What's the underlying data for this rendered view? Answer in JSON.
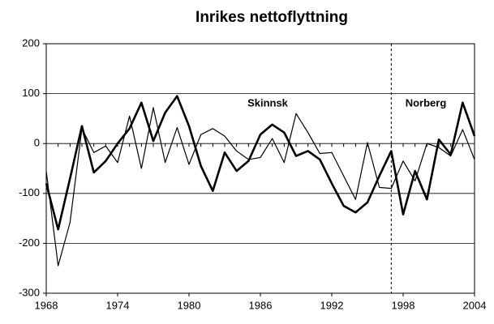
{
  "chart_data": {
    "type": "line",
    "title": "Inrikes nettoflyttning",
    "x": [
      1968,
      1969,
      1970,
      1971,
      1972,
      1973,
      1974,
      1975,
      1976,
      1977,
      1978,
      1979,
      1980,
      1981,
      1982,
      1983,
      1984,
      1985,
      1986,
      1987,
      1988,
      1989,
      1990,
      1991,
      1992,
      1993,
      1994,
      1995,
      1996,
      1997,
      1998,
      1999,
      2000,
      2001,
      2002,
      2003,
      2004
    ],
    "series": [
      {
        "name": "Skinnsk",
        "color": "#000000",
        "width": 1.2,
        "values": [
          -55,
          -245,
          -158,
          30,
          -18,
          -5,
          -38,
          55,
          -50,
          72,
          -38,
          32,
          -42,
          18,
          30,
          15,
          -15,
          -32,
          -28,
          10,
          -38,
          60,
          22,
          -20,
          -18,
          -65,
          -112,
          2,
          -88,
          -90,
          -35,
          -75,
          0,
          -8,
          -25,
          28,
          -32
        ]
      },
      {
        "name": "Norberg",
        "color": "#000000",
        "width": 2.6,
        "values": [
          -80,
          -172,
          -70,
          35,
          -58,
          -35,
          0,
          30,
          82,
          5,
          62,
          95,
          35,
          -45,
          -95,
          -18,
          -55,
          -35,
          18,
          38,
          22,
          -25,
          -15,
          -32,
          -80,
          -125,
          -138,
          -118,
          -65,
          -15,
          -142,
          -55,
          -112,
          8,
          -22,
          82,
          15
        ]
      }
    ],
    "xlim": [
      1968,
      2004
    ],
    "xticks": [
      1968,
      1974,
      1980,
      1986,
      1992,
      1998,
      2004
    ],
    "ylim": [
      -300,
      200
    ],
    "yticks": [
      -300,
      -200,
      -100,
      0,
      100,
      200
    ],
    "grid": true,
    "vline_x": 1997
  }
}
